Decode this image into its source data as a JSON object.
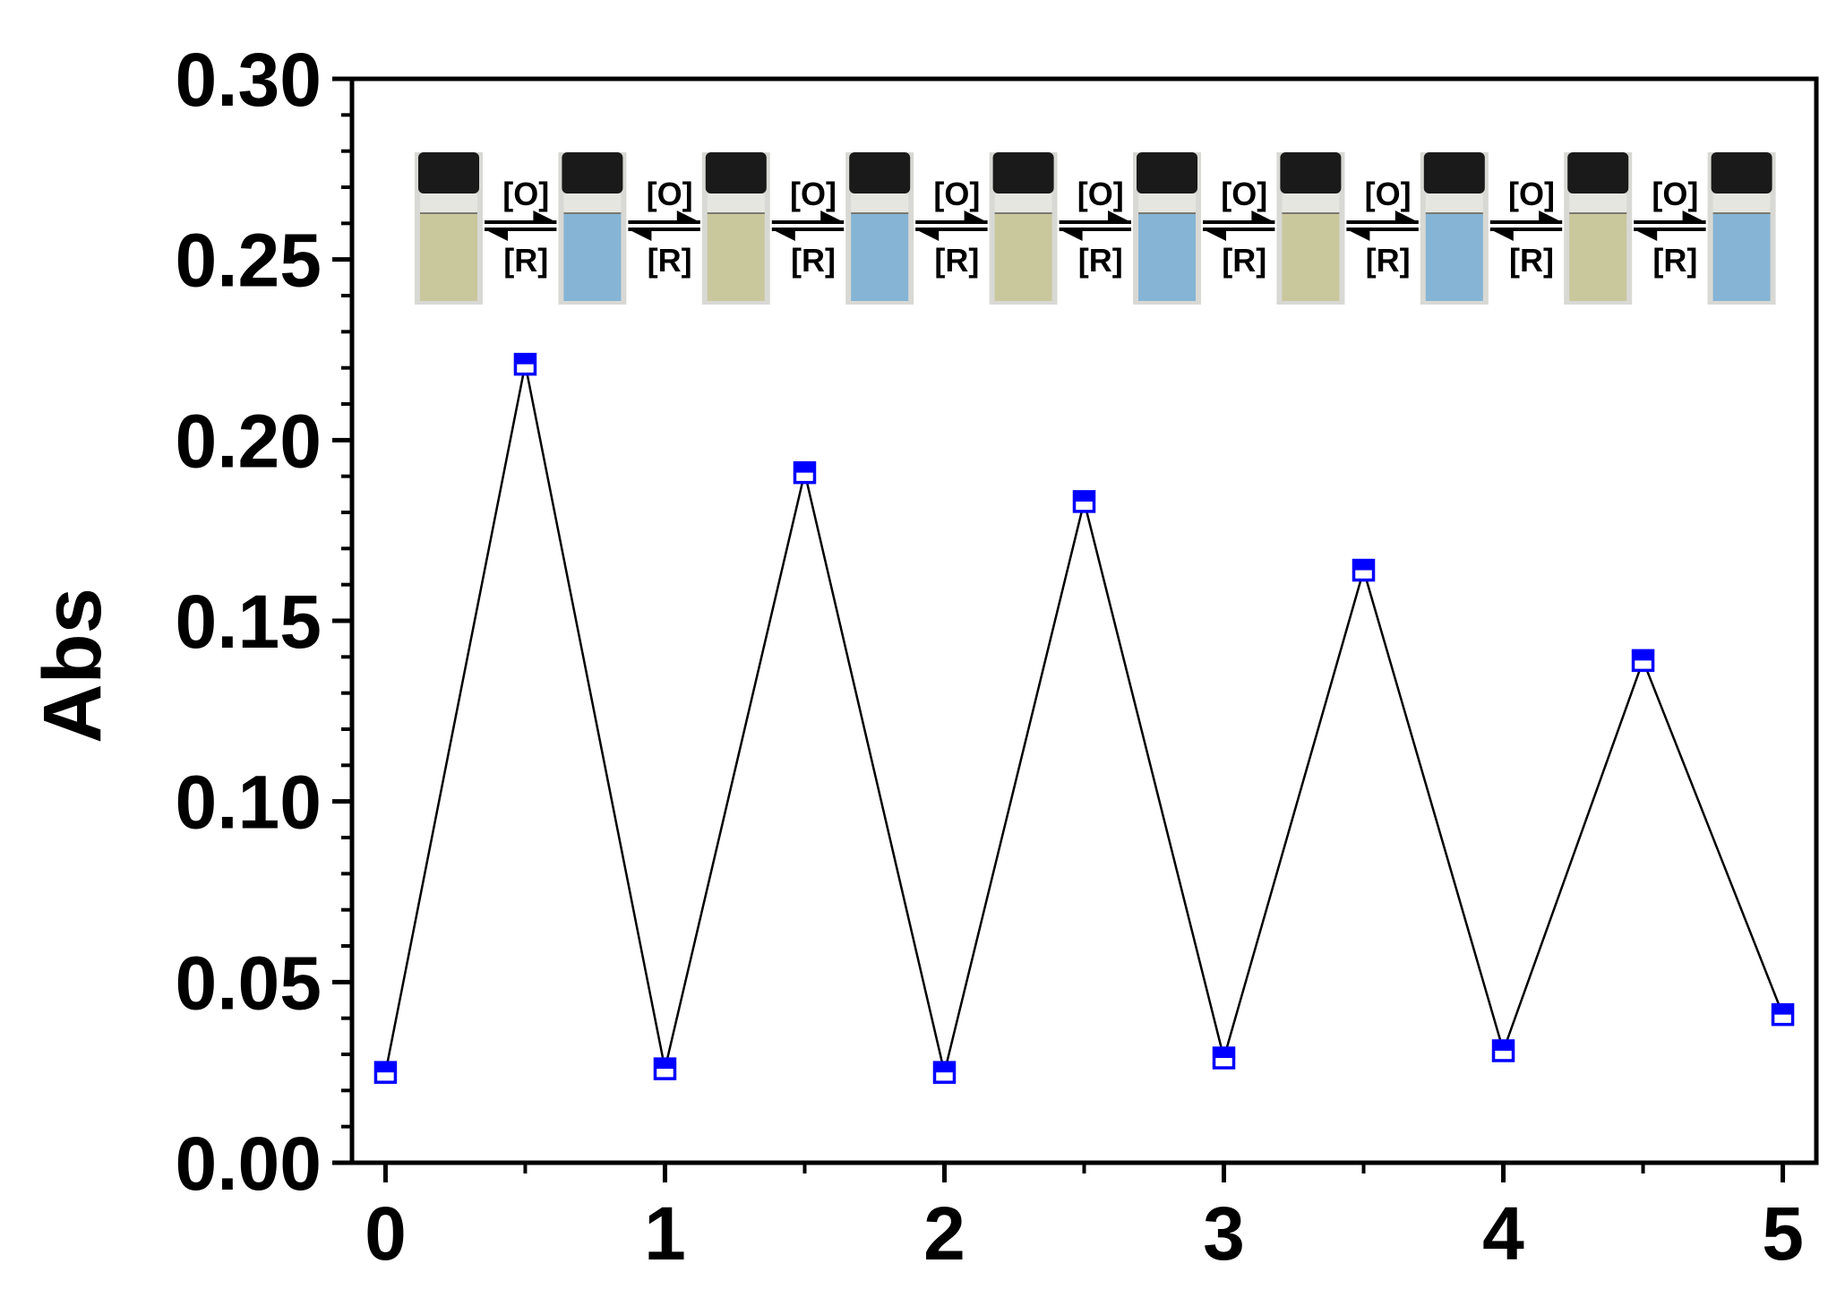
{
  "chart_data": {
    "type": "line",
    "title": "",
    "xlabel": "",
    "ylabel": "Abs",
    "xlim": [
      -0.12,
      5.12
    ],
    "ylim": [
      0,
      0.3
    ],
    "x_ticks": [
      "0",
      "1",
      "2",
      "3",
      "4",
      "5"
    ],
    "y_ticks": [
      "0.00",
      "0.05",
      "0.10",
      "0.15",
      "0.20",
      "0.25",
      "0.30"
    ],
    "grid": false,
    "legend": "none",
    "series": [
      {
        "x": [
          0,
          0.5,
          1,
          1.5,
          2,
          2.5,
          3,
          3.5,
          4,
          4.5,
          5
        ],
        "y": [
          0.025,
          0.221,
          0.026,
          0.191,
          0.025,
          0.183,
          0.029,
          0.164,
          0.031,
          0.139,
          0.041
        ],
        "marker": "half-filled-square",
        "marker_color": "#0000ff",
        "line_color": "#000000"
      }
    ],
    "inset": {
      "vials": [
        "yellow",
        "blue",
        "yellow",
        "blue",
        "yellow",
        "blue",
        "yellow",
        "blue",
        "yellow",
        "blue"
      ],
      "vial_colors": {
        "yellow": "#c9c79c",
        "blue": "#86b4d4",
        "cap": "#1a1a1a"
      },
      "oxidation_label": "[O]",
      "reduction_label": "[R]"
    }
  }
}
